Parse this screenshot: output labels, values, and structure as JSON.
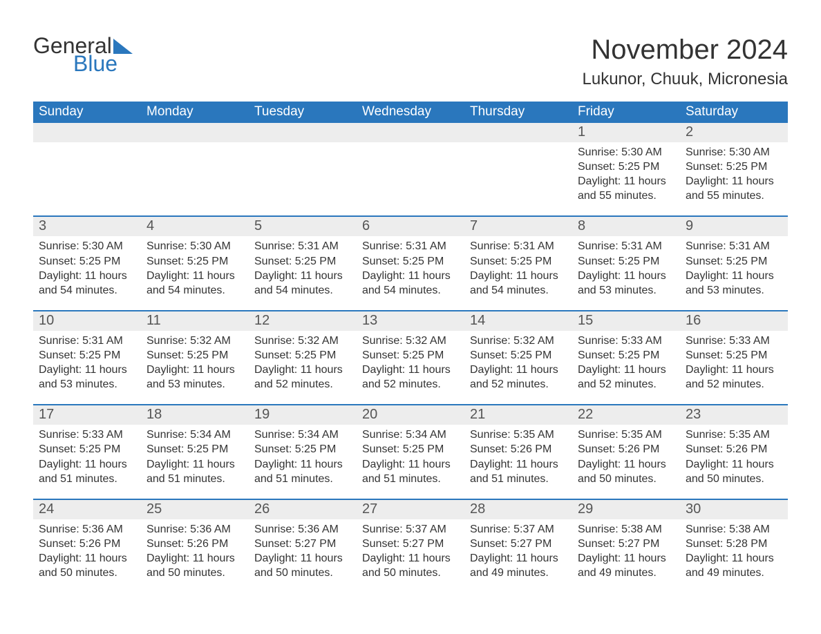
{
  "brand": {
    "word1": "General",
    "word2": "Blue",
    "shape_color": "#2a77bd",
    "word1_color": "#333333",
    "word2_color": "#2a77bd"
  },
  "header": {
    "month_title": "November 2024",
    "location": "Lukunor, Chuuk, Micronesia"
  },
  "colors": {
    "header_row_bg": "#2a77bd",
    "header_row_text": "#ffffff",
    "daynum_band_bg": "#ededed",
    "week_border": "#2a77bd",
    "body_text": "#333333",
    "page_bg": "#ffffff"
  },
  "typography": {
    "month_title_fontsize": 40,
    "location_fontsize": 24,
    "dow_fontsize": 19,
    "daynum_fontsize": 20,
    "body_fontsize": 16,
    "font_family": "Arial"
  },
  "calendar": {
    "type": "table",
    "columns": [
      "Sunday",
      "Monday",
      "Tuesday",
      "Wednesday",
      "Thursday",
      "Friday",
      "Saturday"
    ],
    "weeks": [
      [
        null,
        null,
        null,
        null,
        null,
        {
          "day": "1",
          "sunrise": "Sunrise: 5:30 AM",
          "sunset": "Sunset: 5:25 PM",
          "daylight": "Daylight: 11 hours and 55 minutes."
        },
        {
          "day": "2",
          "sunrise": "Sunrise: 5:30 AM",
          "sunset": "Sunset: 5:25 PM",
          "daylight": "Daylight: 11 hours and 55 minutes."
        }
      ],
      [
        {
          "day": "3",
          "sunrise": "Sunrise: 5:30 AM",
          "sunset": "Sunset: 5:25 PM",
          "daylight": "Daylight: 11 hours and 54 minutes."
        },
        {
          "day": "4",
          "sunrise": "Sunrise: 5:30 AM",
          "sunset": "Sunset: 5:25 PM",
          "daylight": "Daylight: 11 hours and 54 minutes."
        },
        {
          "day": "5",
          "sunrise": "Sunrise: 5:31 AM",
          "sunset": "Sunset: 5:25 PM",
          "daylight": "Daylight: 11 hours and 54 minutes."
        },
        {
          "day": "6",
          "sunrise": "Sunrise: 5:31 AM",
          "sunset": "Sunset: 5:25 PM",
          "daylight": "Daylight: 11 hours and 54 minutes."
        },
        {
          "day": "7",
          "sunrise": "Sunrise: 5:31 AM",
          "sunset": "Sunset: 5:25 PM",
          "daylight": "Daylight: 11 hours and 54 minutes."
        },
        {
          "day": "8",
          "sunrise": "Sunrise: 5:31 AM",
          "sunset": "Sunset: 5:25 PM",
          "daylight": "Daylight: 11 hours and 53 minutes."
        },
        {
          "day": "9",
          "sunrise": "Sunrise: 5:31 AM",
          "sunset": "Sunset: 5:25 PM",
          "daylight": "Daylight: 11 hours and 53 minutes."
        }
      ],
      [
        {
          "day": "10",
          "sunrise": "Sunrise: 5:31 AM",
          "sunset": "Sunset: 5:25 PM",
          "daylight": "Daylight: 11 hours and 53 minutes."
        },
        {
          "day": "11",
          "sunrise": "Sunrise: 5:32 AM",
          "sunset": "Sunset: 5:25 PM",
          "daylight": "Daylight: 11 hours and 53 minutes."
        },
        {
          "day": "12",
          "sunrise": "Sunrise: 5:32 AM",
          "sunset": "Sunset: 5:25 PM",
          "daylight": "Daylight: 11 hours and 52 minutes."
        },
        {
          "day": "13",
          "sunrise": "Sunrise: 5:32 AM",
          "sunset": "Sunset: 5:25 PM",
          "daylight": "Daylight: 11 hours and 52 minutes."
        },
        {
          "day": "14",
          "sunrise": "Sunrise: 5:32 AM",
          "sunset": "Sunset: 5:25 PM",
          "daylight": "Daylight: 11 hours and 52 minutes."
        },
        {
          "day": "15",
          "sunrise": "Sunrise: 5:33 AM",
          "sunset": "Sunset: 5:25 PM",
          "daylight": "Daylight: 11 hours and 52 minutes."
        },
        {
          "day": "16",
          "sunrise": "Sunrise: 5:33 AM",
          "sunset": "Sunset: 5:25 PM",
          "daylight": "Daylight: 11 hours and 52 minutes."
        }
      ],
      [
        {
          "day": "17",
          "sunrise": "Sunrise: 5:33 AM",
          "sunset": "Sunset: 5:25 PM",
          "daylight": "Daylight: 11 hours and 51 minutes."
        },
        {
          "day": "18",
          "sunrise": "Sunrise: 5:34 AM",
          "sunset": "Sunset: 5:25 PM",
          "daylight": "Daylight: 11 hours and 51 minutes."
        },
        {
          "day": "19",
          "sunrise": "Sunrise: 5:34 AM",
          "sunset": "Sunset: 5:25 PM",
          "daylight": "Daylight: 11 hours and 51 minutes."
        },
        {
          "day": "20",
          "sunrise": "Sunrise: 5:34 AM",
          "sunset": "Sunset: 5:25 PM",
          "daylight": "Daylight: 11 hours and 51 minutes."
        },
        {
          "day": "21",
          "sunrise": "Sunrise: 5:35 AM",
          "sunset": "Sunset: 5:26 PM",
          "daylight": "Daylight: 11 hours and 51 minutes."
        },
        {
          "day": "22",
          "sunrise": "Sunrise: 5:35 AM",
          "sunset": "Sunset: 5:26 PM",
          "daylight": "Daylight: 11 hours and 50 minutes."
        },
        {
          "day": "23",
          "sunrise": "Sunrise: 5:35 AM",
          "sunset": "Sunset: 5:26 PM",
          "daylight": "Daylight: 11 hours and 50 minutes."
        }
      ],
      [
        {
          "day": "24",
          "sunrise": "Sunrise: 5:36 AM",
          "sunset": "Sunset: 5:26 PM",
          "daylight": "Daylight: 11 hours and 50 minutes."
        },
        {
          "day": "25",
          "sunrise": "Sunrise: 5:36 AM",
          "sunset": "Sunset: 5:26 PM",
          "daylight": "Daylight: 11 hours and 50 minutes."
        },
        {
          "day": "26",
          "sunrise": "Sunrise: 5:36 AM",
          "sunset": "Sunset: 5:27 PM",
          "daylight": "Daylight: 11 hours and 50 minutes."
        },
        {
          "day": "27",
          "sunrise": "Sunrise: 5:37 AM",
          "sunset": "Sunset: 5:27 PM",
          "daylight": "Daylight: 11 hours and 50 minutes."
        },
        {
          "day": "28",
          "sunrise": "Sunrise: 5:37 AM",
          "sunset": "Sunset: 5:27 PM",
          "daylight": "Daylight: 11 hours and 49 minutes."
        },
        {
          "day": "29",
          "sunrise": "Sunrise: 5:38 AM",
          "sunset": "Sunset: 5:27 PM",
          "daylight": "Daylight: 11 hours and 49 minutes."
        },
        {
          "day": "30",
          "sunrise": "Sunrise: 5:38 AM",
          "sunset": "Sunset: 5:28 PM",
          "daylight": "Daylight: 11 hours and 49 minutes."
        }
      ]
    ]
  }
}
